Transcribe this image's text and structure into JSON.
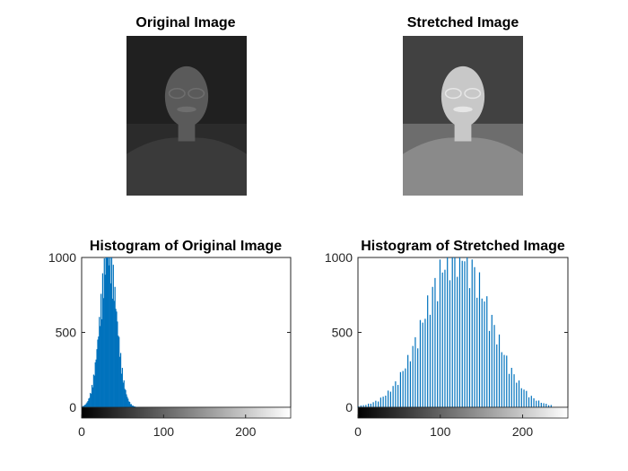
{
  "chart_data": [
    {
      "type": "image",
      "title": "Original Image",
      "tone": "dark",
      "colors": {
        "bg": "#2b2b2b",
        "shirt": "#3a3a3a",
        "face": "#5a5a5a",
        "hair": "#6e6e6e",
        "tree": "#1e1e1e"
      }
    },
    {
      "type": "image",
      "title": "Stretched Image",
      "tone": "contrast-stretched",
      "colors": {
        "bg": "#6d6d6d",
        "shirt": "#8a8a8a",
        "face": "#c8c8c8",
        "hair": "#e6e6e6",
        "tree": "#3a3a3a"
      }
    },
    {
      "type": "bar",
      "title": "Histogram of Original Image",
      "xlim": [
        0,
        255
      ],
      "ylim": [
        0,
        1000
      ],
      "xticks": [
        "0",
        "100",
        "200"
      ],
      "yticks": [
        "0",
        "500",
        "1000"
      ],
      "bar_color": "#0072bd",
      "bar_style": "filled",
      "bins": {
        "start": 0,
        "end": 75,
        "peak_center": 32,
        "peak_width": 14,
        "peak_value": 1000
      },
      "colorbar": true
    },
    {
      "type": "bar",
      "title": "Histogram of Stretched Image",
      "xlim": [
        0,
        255
      ],
      "ylim": [
        0,
        1000
      ],
      "xticks": [
        "0",
        "100",
        "200"
      ],
      "yticks": [
        "0",
        "500",
        "1000"
      ],
      "bar_color": "#0072bd",
      "bar_style": "stem",
      "bins": {
        "start": 0,
        "end": 235,
        "peak_center": 120,
        "peak_width": 55,
        "peak_value": 1000
      },
      "colorbar": true
    }
  ]
}
